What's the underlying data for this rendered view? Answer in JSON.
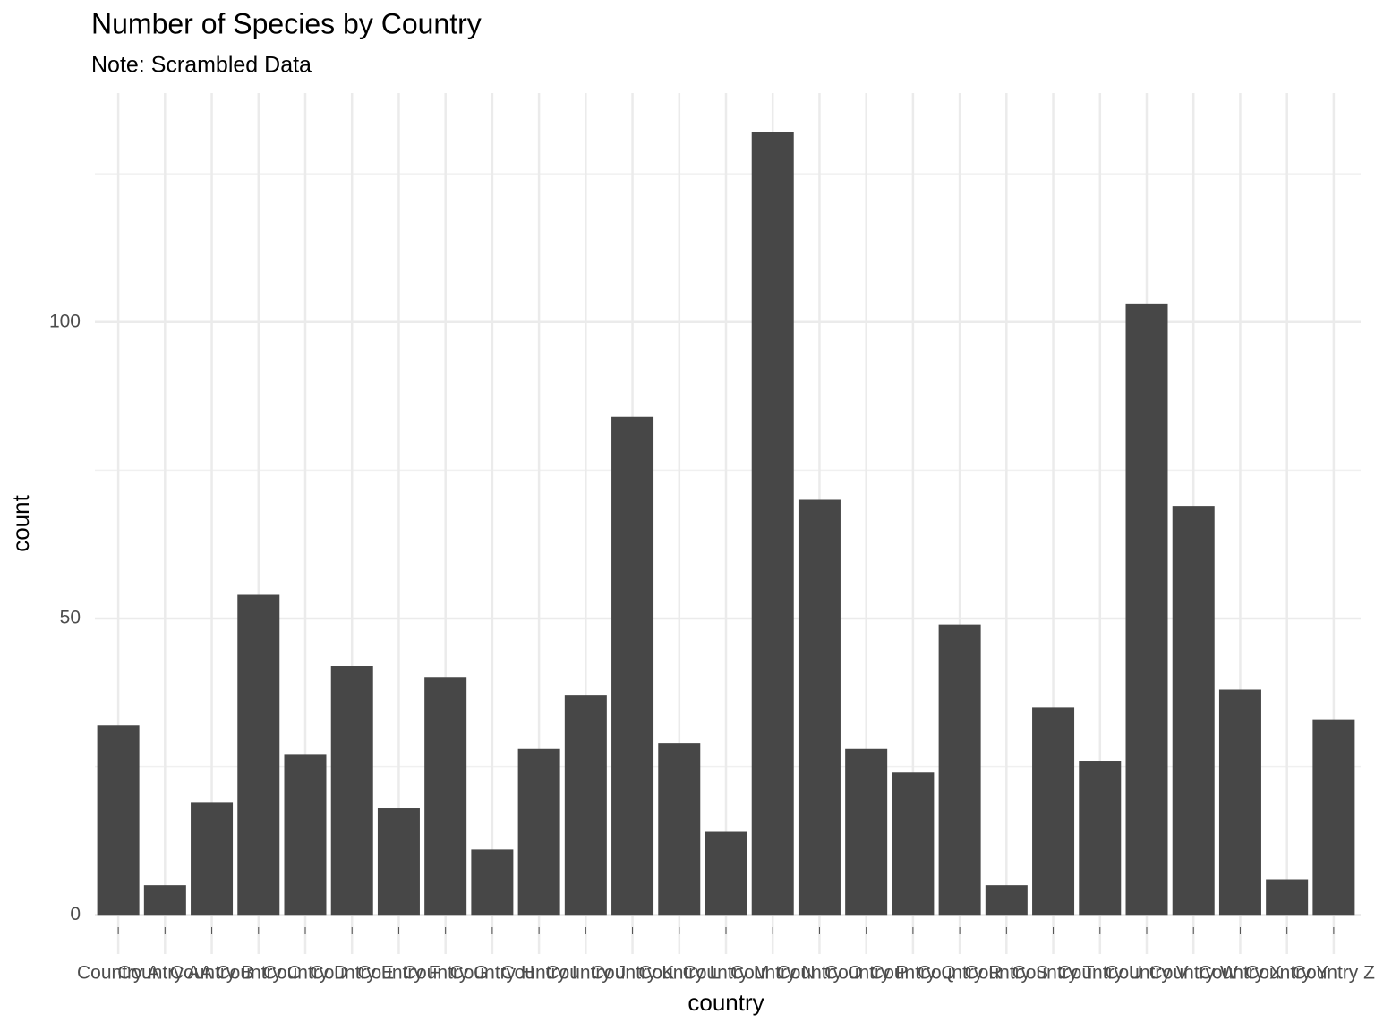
{
  "chart_data": {
    "type": "bar",
    "title": "Number of Species by Country",
    "subtitle": "Note: Scrambled Data",
    "x_label": "country",
    "y_label": "count",
    "categories": [
      "Country A",
      "Country AA",
      "Country B",
      "Country C",
      "Country D",
      "Country E",
      "Country F",
      "Country G",
      "Country H",
      "Country I",
      "Country J",
      "Country K",
      "Country L",
      "Country M",
      "Country N",
      "Country O",
      "Country P",
      "Country Q",
      "Country R",
      "Country S",
      "Country T",
      "Country U",
      "Country V",
      "Country W",
      "Country X",
      "Country Y",
      "Country Z"
    ],
    "values": [
      32,
      5,
      19,
      54,
      27,
      42,
      18,
      40,
      11,
      28,
      37,
      84,
      29,
      14,
      132,
      70,
      28,
      24,
      49,
      5,
      35,
      26,
      103,
      69,
      38,
      6,
      33
    ],
    "color": "#474747",
    "ylim": [
      -6.6,
      138.6
    ],
    "yticks": [
      0,
      50,
      100
    ],
    "minor_yticks": [
      25,
      75,
      125
    ],
    "grid": true
  }
}
